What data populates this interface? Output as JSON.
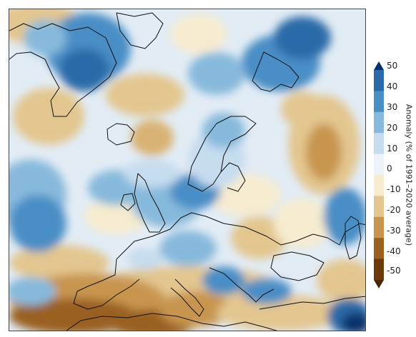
{
  "colorbar": {
    "title": "Anomaly (% of 1991–2020 average)",
    "ticks": [
      "50",
      "40",
      "30",
      "20",
      "10",
      "0",
      "-10",
      "-20",
      "-30",
      "-40",
      "-50"
    ],
    "colors": [
      "#08306b",
      "#2a6aa8",
      "#4a8ec6",
      "#87b9dc",
      "#c6dcef",
      "#eef3f9",
      "#f6ebcf",
      "#e3c68f",
      "#c8954f",
      "#9a6120",
      "#6a3a0a",
      "#4a2605"
    ]
  },
  "map": {
    "coastline_color": "#111111"
  }
}
